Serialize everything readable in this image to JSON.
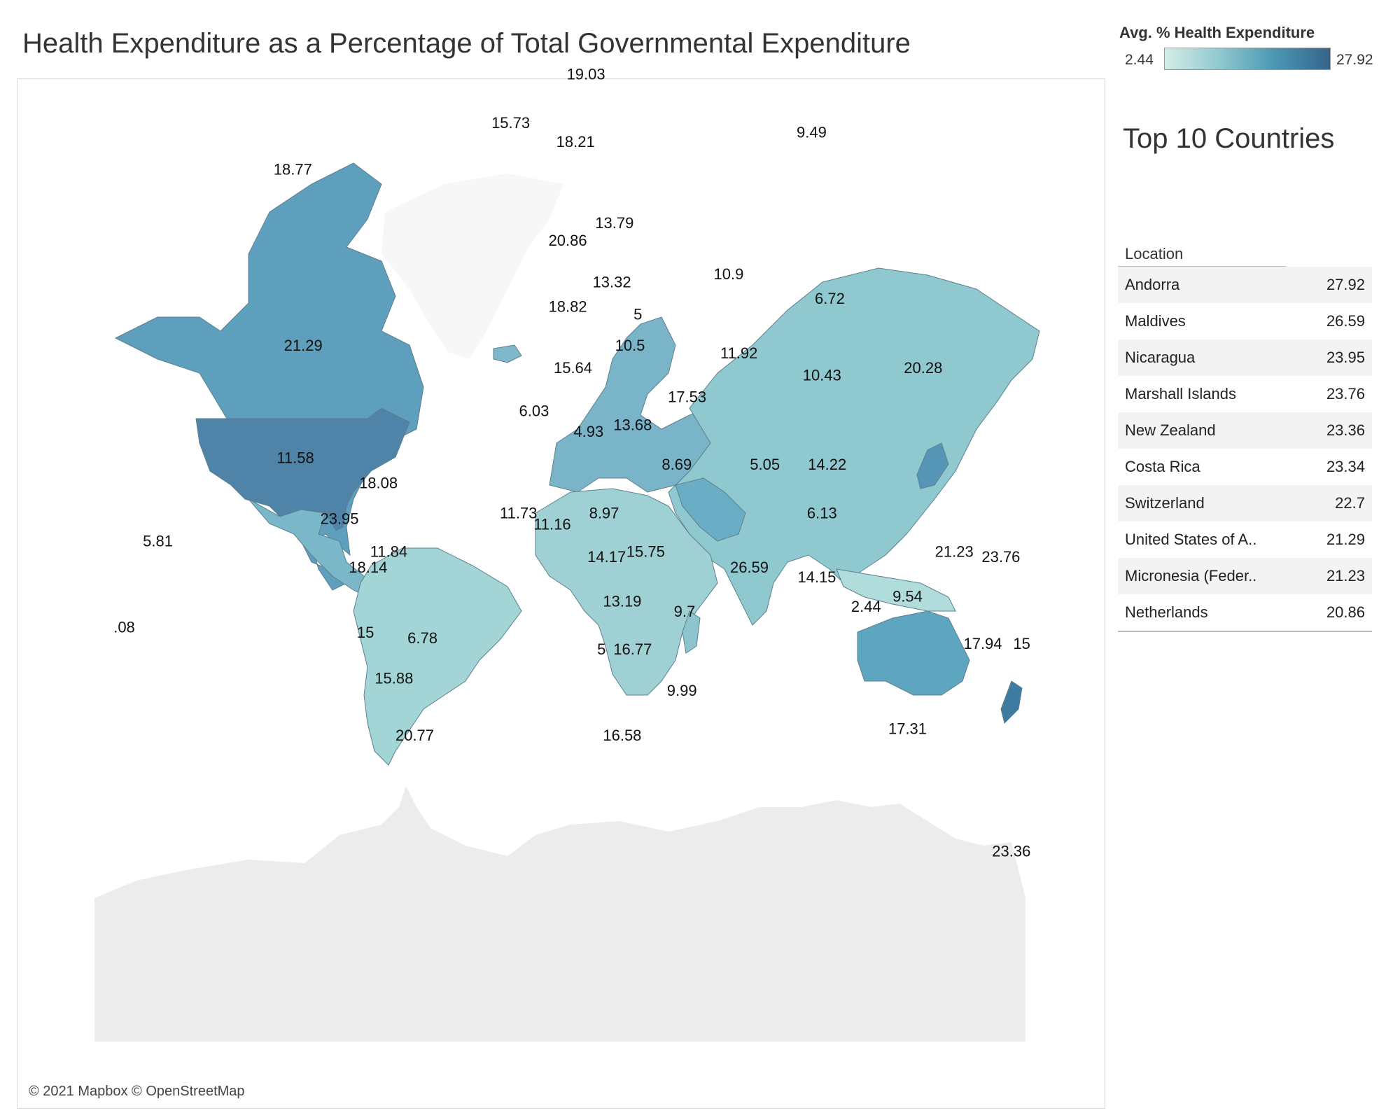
{
  "title": "Health Expenditure as a Percentage of Total Governmental Expenditure",
  "legend": {
    "title": "Avg. % Health Expenditure",
    "min": "2.44",
    "max": "27.92"
  },
  "colors": {
    "low": "#d4ede6",
    "mid": "#8fc8cf",
    "high": "#36648b",
    "antarctica": "#ececec",
    "ocean": "#ffffff"
  },
  "attribution": "© 2021 Mapbox © OpenStreetMap",
  "top10": {
    "title": "Top 10 Countries",
    "column": "Location",
    "rows": [
      {
        "name": "Andorra",
        "value": "27.92"
      },
      {
        "name": "Maldives",
        "value": "26.59"
      },
      {
        "name": "Nicaragua",
        "value": "23.95"
      },
      {
        "name": "Marshall Islands",
        "value": "23.76"
      },
      {
        "name": "New Zealand",
        "value": "23.36"
      },
      {
        "name": "Costa Rica",
        "value": "23.34"
      },
      {
        "name": "Switzerland",
        "value": "22.7"
      },
      {
        "name": "United States of A..",
        "value": "21.29"
      },
      {
        "name": "Micronesia (Feder..",
        "value": "21.23"
      },
      {
        "name": "Netherlands",
        "value": "20.86"
      }
    ]
  },
  "map_labels": [
    {
      "text": "18.77",
      "lon": -103,
      "lat": 60
    },
    {
      "text": "21.29",
      "lon": -99,
      "lat": 39
    },
    {
      "text": "11.58",
      "lon": -102,
      "lat": 23
    },
    {
      "text": "23.95",
      "lon": -85,
      "lat": 13
    },
    {
      "text": "18.08",
      "lon": -70,
      "lat": 19
    },
    {
      "text": "18.14",
      "lon": -74,
      "lat": 4
    },
    {
      "text": "11.84",
      "lon": -66,
      "lat": 7
    },
    {
      "text": "15",
      "lon": -75,
      "lat": -9
    },
    {
      "text": "6.78",
      "lon": -53,
      "lat": -10
    },
    {
      "text": "15.88",
      "lon": -64,
      "lat": -17
    },
    {
      "text": "20.77",
      "lon": -56,
      "lat": -26
    },
    {
      "text": "5.81",
      "lon": -155,
      "lat": 9
    },
    {
      "text": ".08",
      "lon": -168,
      "lat": -8
    },
    {
      "text": "15.73",
      "lon": -19,
      "lat": 65
    },
    {
      "text": "19.03",
      "lon": 10,
      "lat": 70
    },
    {
      "text": "18.21",
      "lon": 6,
      "lat": 63
    },
    {
      "text": "20.86",
      "lon": 3,
      "lat": 52
    },
    {
      "text": "13.79",
      "lon": 21,
      "lat": 54
    },
    {
      "text": "13.32",
      "lon": 20,
      "lat": 47
    },
    {
      "text": "18.82",
      "lon": 3,
      "lat": 44
    },
    {
      "text": "5",
      "lon": 30,
      "lat": 43
    },
    {
      "text": "10.5",
      "lon": 27,
      "lat": 39
    },
    {
      "text": "15.64",
      "lon": 5,
      "lat": 36
    },
    {
      "text": "6.03",
      "lon": -10,
      "lat": 30
    },
    {
      "text": "4.93",
      "lon": 11,
      "lat": 27
    },
    {
      "text": "13.68",
      "lon": 28,
      "lat": 28
    },
    {
      "text": "17.53",
      "lon": 49,
      "lat": 32
    },
    {
      "text": "8.69",
      "lon": 45,
      "lat": 22
    },
    {
      "text": "10.9",
      "lon": 65,
      "lat": 48
    },
    {
      "text": "11.92",
      "lon": 69,
      "lat": 38
    },
    {
      "text": "6.72",
      "lon": 104,
      "lat": 45
    },
    {
      "text": "10.43",
      "lon": 101,
      "lat": 35
    },
    {
      "text": "20.28",
      "lon": 140,
      "lat": 36
    },
    {
      "text": "9.49",
      "lon": 97,
      "lat": 64
    },
    {
      "text": "5.05",
      "lon": 79,
      "lat": 22
    },
    {
      "text": "14.22",
      "lon": 103,
      "lat": 22
    },
    {
      "text": "6.13",
      "lon": 101,
      "lat": 14
    },
    {
      "text": "14.15",
      "lon": 99,
      "lat": 2
    },
    {
      "text": "26.59",
      "lon": 73,
      "lat": 4
    },
    {
      "text": "11.73",
      "lon": -16,
      "lat": 14
    },
    {
      "text": "11.16",
      "lon": -3,
      "lat": 12
    },
    {
      "text": "8.97",
      "lon": 17,
      "lat": 14
    },
    {
      "text": "14.17",
      "lon": 18,
      "lat": 6
    },
    {
      "text": "15.75",
      "lon": 33,
      "lat": 7
    },
    {
      "text": "13.19",
      "lon": 24,
      "lat": -3
    },
    {
      "text": "9.7",
      "lon": 48,
      "lat": -5
    },
    {
      "text": "5",
      "lon": 16,
      "lat": -12
    },
    {
      "text": "16.77",
      "lon": 28,
      "lat": -12
    },
    {
      "text": "9.99",
      "lon": 47,
      "lat": -19
    },
    {
      "text": "16.58",
      "lon": 24,
      "lat": -26
    },
    {
      "text": "21.23",
      "lon": 152,
      "lat": 7
    },
    {
      "text": "23.76",
      "lon": 170,
      "lat": 6
    },
    {
      "text": "2.44",
      "lon": 118,
      "lat": -4
    },
    {
      "text": "9.54",
      "lon": 134,
      "lat": -2
    },
    {
      "text": "17.94",
      "lon": 163,
      "lat": -11
    },
    {
      "text": "15",
      "lon": 178,
      "lat": -11
    },
    {
      "text": "17.31",
      "lon": 134,
      "lat": -25
    },
    {
      "text": "23.36",
      "lon": 174,
      "lat": -42
    }
  ]
}
